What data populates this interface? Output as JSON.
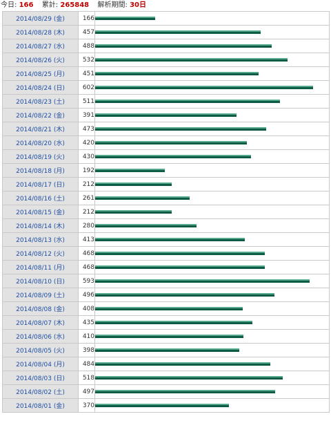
{
  "summary": {
    "today_label": "今日:",
    "today_value": "166",
    "total_label": "累計:",
    "total_value": "265848",
    "period_label": "解析期間:",
    "period_value": "30日"
  },
  "max_value": 602,
  "rows": [
    {
      "date": "2014/08/29 (金)",
      "count": 166
    },
    {
      "date": "2014/08/28 (木)",
      "count": 457
    },
    {
      "date": "2014/08/27 (水)",
      "count": 488
    },
    {
      "date": "2014/08/26 (火)",
      "count": 532
    },
    {
      "date": "2014/08/25 (月)",
      "count": 451
    },
    {
      "date": "2014/08/24 (日)",
      "count": 602
    },
    {
      "date": "2014/08/23 (土)",
      "count": 511
    },
    {
      "date": "2014/08/22 (金)",
      "count": 391
    },
    {
      "date": "2014/08/21 (木)",
      "count": 473
    },
    {
      "date": "2014/08/20 (水)",
      "count": 420
    },
    {
      "date": "2014/08/19 (火)",
      "count": 430
    },
    {
      "date": "2014/08/18 (月)",
      "count": 192
    },
    {
      "date": "2014/08/17 (日)",
      "count": 212
    },
    {
      "date": "2014/08/16 (土)",
      "count": 261
    },
    {
      "date": "2014/08/15 (金)",
      "count": 212
    },
    {
      "date": "2014/08/14 (木)",
      "count": 280
    },
    {
      "date": "2014/08/13 (水)",
      "count": 413
    },
    {
      "date": "2014/08/12 (火)",
      "count": 468
    },
    {
      "date": "2014/08/11 (月)",
      "count": 468
    },
    {
      "date": "2014/08/10 (日)",
      "count": 593
    },
    {
      "date": "2014/08/09 (土)",
      "count": 496
    },
    {
      "date": "2014/08/08 (金)",
      "count": 408
    },
    {
      "date": "2014/08/07 (木)",
      "count": 435
    },
    {
      "date": "2014/08/06 (水)",
      "count": 410
    },
    {
      "date": "2014/08/05 (火)",
      "count": 398
    },
    {
      "date": "2014/08/04 (月)",
      "count": 484
    },
    {
      "date": "2014/08/03 (日)",
      "count": 518
    },
    {
      "date": "2014/08/02 (土)",
      "count": 497
    },
    {
      "date": "2014/08/01 (金)",
      "count": 370
    }
  ],
  "colors": {
    "bar_light": "#54a98c",
    "bar_dark": "#0e5b46",
    "highlight_number": "#c00000",
    "date_link": "#1f4fa3",
    "date_cell_bg": "#e2e2e2"
  }
}
